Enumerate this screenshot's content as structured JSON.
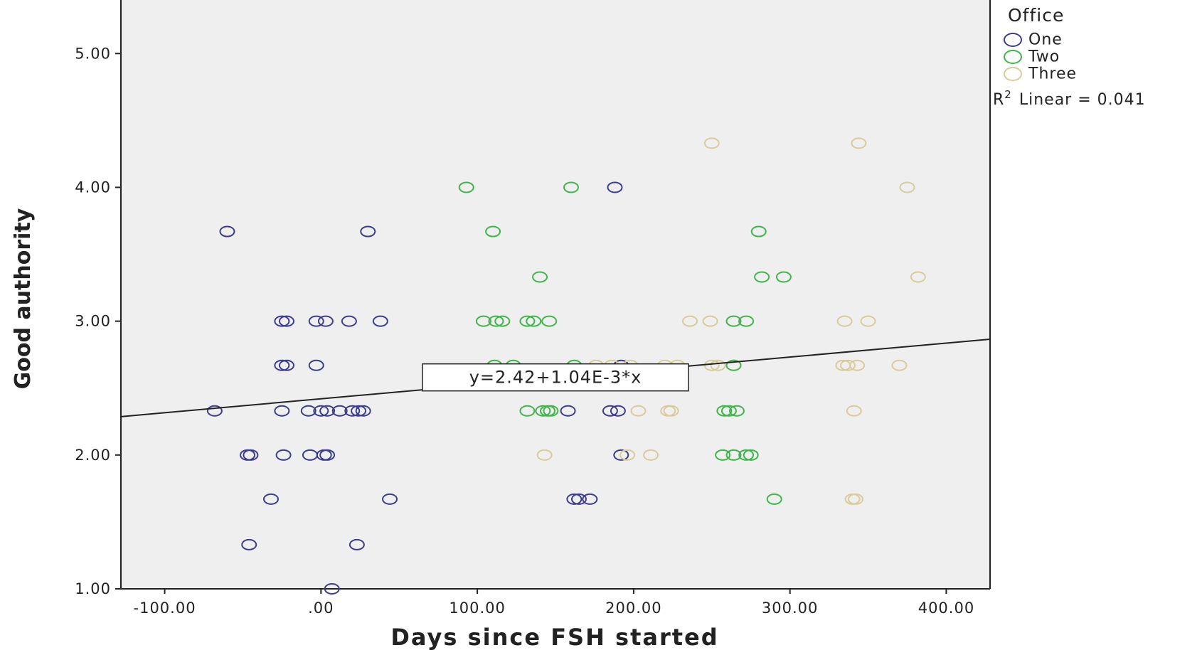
{
  "chart_data": {
    "type": "scatter",
    "xlabel": "Days since FSH started",
    "ylabel": "Good authority",
    "xlim": [
      -128,
      428
    ],
    "ylim": [
      1.0,
      5.4
    ],
    "x_ticks": [
      -100,
      0,
      100,
      200,
      300,
      400
    ],
    "x_tick_labels": [
      "-100.00",
      ".00",
      "100.00",
      "200.00",
      "300.00",
      "400.00"
    ],
    "y_ticks": [
      1,
      2,
      3,
      4,
      5
    ],
    "y_tick_labels": [
      "1.00",
      "2.00",
      "3.00",
      "4.00",
      "5.00"
    ],
    "grid": false,
    "legend": {
      "title": "Office",
      "placement": "top-right outside",
      "r2_text": "Linear = 0.041",
      "r2_prefix": "R",
      "r2_superscript": "2"
    },
    "fit_line": {
      "intercept": 2.42,
      "slope": 0.00104,
      "label": "y=2.42+1.04E-3*x",
      "label_at": [
        150,
        2.58
      ]
    },
    "colors": {
      "One": "#3d3d8f",
      "Two": "#3fb54a",
      "Three": "#d8cc9a",
      "plot_bg": "#efefef",
      "axis": "#222222"
    },
    "series": [
      {
        "name": "One",
        "points": [
          [
            188,
            4.0
          ],
          [
            -60,
            3.67
          ],
          [
            30,
            3.67
          ],
          [
            -25,
            3.0
          ],
          [
            -22,
            3.0
          ],
          [
            -3,
            3.0
          ],
          [
            3,
            3.0
          ],
          [
            18,
            3.0
          ],
          [
            38,
            3.0
          ],
          [
            -25,
            2.67
          ],
          [
            -22,
            2.67
          ],
          [
            -3,
            2.67
          ],
          [
            192,
            2.67
          ],
          [
            -68,
            2.33
          ],
          [
            -25,
            2.33
          ],
          [
            -8,
            2.33
          ],
          [
            0,
            2.33
          ],
          [
            4,
            2.33
          ],
          [
            12,
            2.33
          ],
          [
            20,
            2.33
          ],
          [
            24,
            2.33
          ],
          [
            27,
            2.33
          ],
          [
            158,
            2.33
          ],
          [
            185,
            2.33
          ],
          [
            190,
            2.33
          ],
          [
            -47,
            2.0
          ],
          [
            -45,
            2.0
          ],
          [
            -24,
            2.0
          ],
          [
            -7,
            2.0
          ],
          [
            2,
            2.0
          ],
          [
            4,
            2.0
          ],
          [
            192,
            2.0
          ],
          [
            -32,
            1.67
          ],
          [
            44,
            1.67
          ],
          [
            162,
            1.67
          ],
          [
            165,
            1.67
          ],
          [
            172,
            1.67
          ],
          [
            -46,
            1.33
          ],
          [
            23,
            1.33
          ],
          [
            7,
            1.0
          ]
        ]
      },
      {
        "name": "Two",
        "points": [
          [
            93,
            4.0
          ],
          [
            160,
            4.0
          ],
          [
            110,
            3.67
          ],
          [
            280,
            3.67
          ],
          [
            140,
            3.33
          ],
          [
            282,
            3.33
          ],
          [
            296,
            3.33
          ],
          [
            104,
            3.0
          ],
          [
            112,
            3.0
          ],
          [
            116,
            3.0
          ],
          [
            132,
            3.0
          ],
          [
            136,
            3.0
          ],
          [
            146,
            3.0
          ],
          [
            264,
            3.0
          ],
          [
            272,
            3.0
          ],
          [
            111,
            2.67
          ],
          [
            123,
            2.67
          ],
          [
            162,
            2.67
          ],
          [
            264,
            2.67
          ],
          [
            132,
            2.33
          ],
          [
            142,
            2.33
          ],
          [
            145,
            2.33
          ],
          [
            147,
            2.33
          ],
          [
            258,
            2.33
          ],
          [
            261,
            2.33
          ],
          [
            266,
            2.33
          ],
          [
            257,
            2.0
          ],
          [
            264,
            2.0
          ],
          [
            272,
            2.0
          ],
          [
            275,
            2.0
          ],
          [
            290,
            1.67
          ]
        ]
      },
      {
        "name": "Three",
        "points": [
          [
            250,
            4.33
          ],
          [
            344,
            4.33
          ],
          [
            375,
            4.0
          ],
          [
            382,
            3.33
          ],
          [
            236,
            3.0
          ],
          [
            249,
            3.0
          ],
          [
            335,
            3.0
          ],
          [
            350,
            3.0
          ],
          [
            176,
            2.67
          ],
          [
            186,
            2.67
          ],
          [
            198,
            2.67
          ],
          [
            220,
            2.67
          ],
          [
            228,
            2.67
          ],
          [
            250,
            2.67
          ],
          [
            254,
            2.67
          ],
          [
            334,
            2.67
          ],
          [
            337,
            2.67
          ],
          [
            343,
            2.67
          ],
          [
            370,
            2.67
          ],
          [
            203,
            2.33
          ],
          [
            222,
            2.33
          ],
          [
            224,
            2.33
          ],
          [
            341,
            2.33
          ],
          [
            143,
            2.0
          ],
          [
            196,
            2.0
          ],
          [
            211,
            2.0
          ],
          [
            340,
            1.67
          ],
          [
            342,
            1.67
          ]
        ]
      }
    ]
  }
}
